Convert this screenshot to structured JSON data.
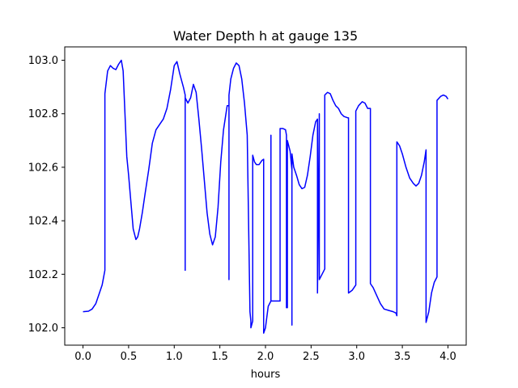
{
  "chart_data": {
    "type": "line",
    "title": "Water Depth h at gauge 135",
    "xlabel": "hours",
    "ylabel": "",
    "xlim": [
      -0.2,
      4.2
    ],
    "ylim": [
      101.935,
      103.05
    ],
    "xticks": [
      0.0,
      0.5,
      1.0,
      1.5,
      2.0,
      2.5,
      3.0,
      3.5,
      4.0
    ],
    "yticks": [
      102.0,
      102.2,
      102.4,
      102.6,
      102.8,
      103.0
    ],
    "xtick_labels": [
      "0.0",
      "0.5",
      "1.0",
      "1.5",
      "2.0",
      "2.5",
      "3.0",
      "3.5",
      "4.0"
    ],
    "ytick_labels": [
      "102.0",
      "102.2",
      "102.4",
      "102.6",
      "102.8",
      "103.0"
    ],
    "grid": false,
    "series": [
      {
        "color": "#0000ff",
        "x": [
          0.0,
          0.06,
          0.1,
          0.14,
          0.18,
          0.21,
          0.24,
          0.24,
          0.27,
          0.3,
          0.33,
          0.36,
          0.39,
          0.42,
          0.44,
          0.46,
          0.48,
          0.5,
          0.53,
          0.55,
          0.58,
          0.6,
          0.62,
          0.65,
          0.68,
          0.72,
          0.76,
          0.8,
          0.84,
          0.88,
          0.92,
          0.96,
          1.0,
          1.03,
          1.06,
          1.1,
          1.12,
          1.12,
          1.12,
          1.15,
          1.18,
          1.21,
          1.24,
          1.27,
          1.3,
          1.33,
          1.36,
          1.39,
          1.42,
          1.45,
          1.48,
          1.51,
          1.54,
          1.58,
          1.6,
          1.6,
          1.6,
          1.6,
          1.62,
          1.65,
          1.68,
          1.71,
          1.74,
          1.77,
          1.8,
          1.83,
          1.84,
          1.84,
          1.86,
          1.86,
          1.88,
          1.9,
          1.93,
          1.96,
          1.98,
          1.98,
          2.0,
          2.03,
          2.06,
          2.06,
          2.06,
          2.09,
          2.12,
          2.15,
          2.16,
          2.16,
          2.19,
          2.22,
          2.23,
          2.23,
          2.24,
          2.24,
          2.27,
          2.29,
          2.29,
          2.29,
          2.31,
          2.34,
          2.37,
          2.4,
          2.43,
          2.46,
          2.49,
          2.52,
          2.55,
          2.57,
          2.57,
          2.59,
          2.59,
          2.62,
          2.65,
          2.65,
          2.68,
          2.71,
          2.74,
          2.77,
          2.8,
          2.83,
          2.86,
          2.9,
          2.91,
          2.91,
          2.95,
          2.99,
          2.99,
          3.02,
          3.06,
          3.09,
          3.12,
          3.15,
          3.15,
          3.15,
          3.18,
          3.22,
          3.26,
          3.3,
          3.35,
          3.4,
          3.43,
          3.44,
          3.44,
          3.47,
          3.5,
          3.54,
          3.58,
          3.62,
          3.65,
          3.68,
          3.71,
          3.74,
          3.76,
          3.76,
          3.79,
          3.82,
          3.85,
          3.88,
          3.88,
          3.92,
          3.95,
          3.98,
          4.0
        ],
        "y": [
          102.06,
          102.062,
          102.07,
          102.09,
          102.13,
          102.16,
          102.215,
          102.875,
          102.96,
          102.98,
          102.97,
          102.965,
          102.985,
          103.0,
          102.96,
          102.8,
          102.64,
          102.57,
          102.45,
          102.37,
          102.33,
          102.34,
          102.37,
          102.43,
          102.5,
          102.59,
          102.69,
          102.74,
          102.76,
          102.78,
          102.82,
          102.89,
          102.98,
          102.995,
          102.95,
          102.9,
          102.87,
          102.215,
          102.86,
          102.84,
          102.86,
          102.91,
          102.88,
          102.78,
          102.67,
          102.55,
          102.43,
          102.35,
          102.31,
          102.34,
          102.45,
          102.62,
          102.74,
          102.83,
          102.83,
          102.18,
          102.2,
          102.87,
          102.93,
          102.97,
          102.99,
          102.98,
          102.93,
          102.84,
          102.72,
          102.06,
          102.025,
          102.0,
          102.025,
          102.645,
          102.62,
          102.61,
          102.61,
          102.625,
          102.63,
          101.98,
          102.0,
          102.08,
          102.1,
          102.72,
          102.1,
          102.1,
          102.1,
          102.1,
          102.1,
          102.745,
          102.745,
          102.74,
          102.72,
          102.075,
          102.075,
          102.7,
          102.66,
          102.59,
          102.01,
          102.65,
          102.6,
          102.57,
          102.535,
          102.52,
          102.525,
          102.57,
          102.64,
          102.72,
          102.77,
          102.78,
          102.13,
          102.8,
          102.18,
          102.2,
          102.22,
          102.87,
          102.88,
          102.875,
          102.85,
          102.83,
          102.82,
          102.8,
          102.79,
          102.785,
          102.785,
          102.13,
          102.14,
          102.16,
          102.81,
          102.83,
          102.845,
          102.84,
          102.82,
          102.82,
          102.5,
          102.165,
          102.15,
          102.12,
          102.09,
          102.07,
          102.065,
          102.06,
          102.055,
          102.045,
          102.695,
          102.68,
          102.65,
          102.6,
          102.56,
          102.54,
          102.53,
          102.54,
          102.57,
          102.62,
          102.665,
          102.02,
          102.06,
          102.13,
          102.17,
          102.19,
          102.85,
          102.865,
          102.87,
          102.865,
          102.855
        ]
      }
    ]
  }
}
